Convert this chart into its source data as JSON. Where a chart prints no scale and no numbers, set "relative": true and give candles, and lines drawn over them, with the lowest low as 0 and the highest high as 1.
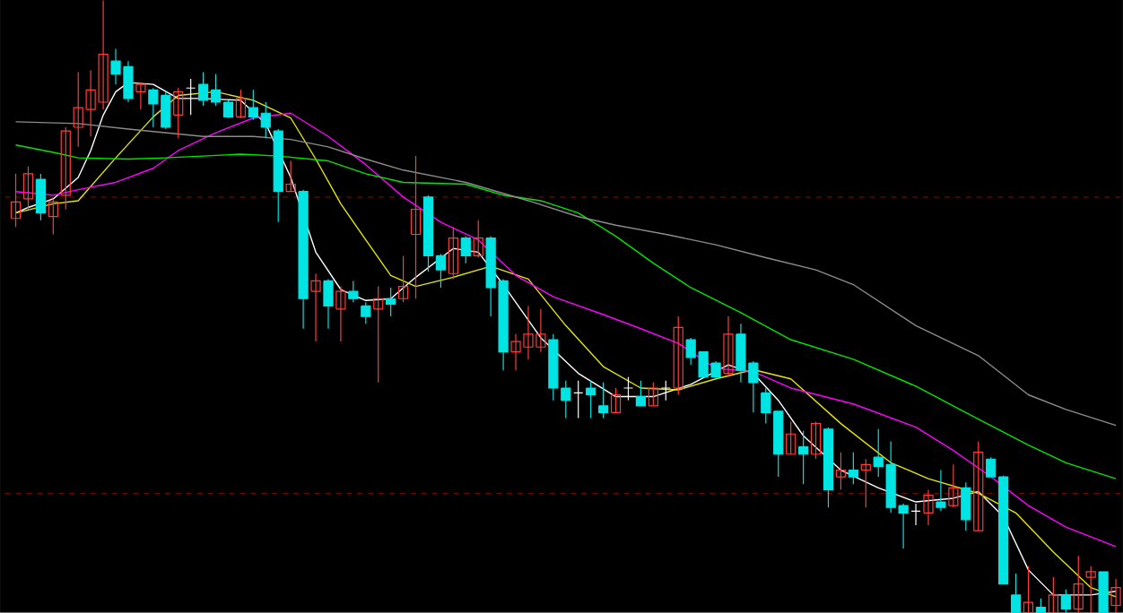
{
  "chart_data": {
    "type": "candlestick",
    "relative": true,
    "tick_labels": false,
    "categories": [
      null,
      null,
      null,
      null,
      null,
      null,
      null,
      null,
      null,
      null,
      null,
      null,
      null,
      null,
      null,
      null,
      null,
      null,
      null,
      null,
      null,
      null,
      null,
      null,
      null,
      null,
      null,
      null,
      null,
      null,
      null,
      null,
      null,
      null,
      null,
      null,
      null,
      null,
      null,
      null,
      null,
      null,
      null,
      null,
      null,
      null,
      null,
      null,
      null,
      null,
      null,
      null,
      null,
      null,
      null,
      null,
      null,
      null,
      null,
      null,
      null,
      null,
      null,
      null,
      null,
      null,
      null,
      null,
      null,
      null,
      null,
      null,
      null,
      null,
      null,
      null,
      null,
      null,
      null,
      null,
      null,
      null,
      null,
      null,
      null,
      null,
      null,
      null,
      null
    ],
    "ohlc": [
      [
        0.644,
        0.717,
        0.63,
        0.671
      ],
      [
        0.676,
        0.729,
        0.659,
        0.717
      ],
      [
        0.708,
        0.717,
        0.641,
        0.653
      ],
      [
        0.647,
        0.676,
        0.618,
        0.671
      ],
      [
        0.682,
        0.793,
        0.659,
        0.787
      ],
      [
        0.793,
        0.883,
        0.761,
        0.825
      ],
      [
        0.822,
        0.886,
        0.778,
        0.854
      ],
      [
        0.834,
        1,
        0.822,
        0.912
      ],
      [
        0.901,
        0.921,
        0.863,
        0.88
      ],
      [
        0.892,
        0.901,
        0.834,
        0.84
      ],
      [
        0.851,
        0.866,
        0.822,
        0.863
      ],
      [
        0.854,
        0.857,
        0.793,
        0.831
      ],
      [
        0.845,
        0.851,
        0.79,
        0.793
      ],
      [
        0.813,
        0.857,
        0.775,
        0.851
      ],
      [
        0.857,
        0.872,
        0.813,
        0.857
      ],
      [
        0.863,
        0.883,
        0.828,
        0.837
      ],
      [
        0.854,
        0.88,
        0.828,
        0.834
      ],
      [
        0.834,
        0.837,
        0.808,
        0.81
      ],
      [
        0.81,
        0.854,
        0.808,
        0.84
      ],
      [
        0.825,
        0.854,
        0.805,
        0.81
      ],
      [
        0.816,
        0.834,
        0.775,
        0.793
      ],
      [
        0.787,
        0.79,
        0.638,
        0.688
      ],
      [
        0.688,
        0.738,
        0.688,
        0.7
      ],
      [
        0.688,
        0.691,
        0.464,
        0.513
      ],
      [
        0.525,
        0.554,
        0.443,
        0.542
      ],
      [
        0.542,
        0.545,
        0.464,
        0.501
      ],
      [
        0.496,
        0.533,
        0.443,
        0.525
      ],
      [
        0.525,
        0.542,
        0.507,
        0.513
      ],
      [
        0.501,
        0.507,
        0.472,
        0.484
      ],
      [
        0.496,
        0.533,
        0.376,
        0.513
      ],
      [
        0.513,
        0.531,
        0.484,
        0.504
      ],
      [
        0.513,
        0.583,
        0.507,
        0.533
      ],
      [
        0.618,
        0.746,
        0.513,
        0.659
      ],
      [
        0.679,
        0.682,
        0.557,
        0.583
      ],
      [
        0.583,
        0.586,
        0.531,
        0.56
      ],
      [
        0.554,
        0.63,
        0.545,
        0.612
      ],
      [
        0.612,
        0.615,
        0.571,
        0.583
      ],
      [
        0.583,
        0.641,
        0.58,
        0.612
      ],
      [
        0.612,
        0.615,
        0.484,
        0.531
      ],
      [
        0.542,
        0.545,
        0.396,
        0.426
      ],
      [
        0.426,
        0.455,
        0.396,
        0.443
      ],
      [
        0.434,
        0.501,
        0.414,
        0.455
      ],
      [
        0.434,
        0.496,
        0.426,
        0.455
      ],
      [
        0.446,
        0.455,
        0.347,
        0.367
      ],
      [
        0.367,
        0.379,
        0.318,
        0.347
      ],
      [
        0.359,
        0.379,
        0.318,
        0.359
      ],
      [
        0.367,
        0.379,
        0.318,
        0.356
      ],
      [
        0.338,
        0.376,
        0.318,
        0.327
      ],
      [
        0.327,
        0.367,
        0.327,
        0.356
      ],
      [
        0.367,
        0.385,
        0.347,
        0.367
      ],
      [
        0.353,
        0.379,
        0.338,
        0.338
      ],
      [
        0.338,
        0.376,
        0.338,
        0.367
      ],
      [
        0.367,
        0.379,
        0.347,
        0.367
      ],
      [
        0.367,
        0.484,
        0.356,
        0.466
      ],
      [
        0.446,
        0.449,
        0.405,
        0.417
      ],
      [
        0.426,
        0.426,
        0.385,
        0.385
      ],
      [
        0.408,
        0.411,
        0.382,
        0.385
      ],
      [
        0.391,
        0.484,
        0.385,
        0.455
      ],
      [
        0.455,
        0.472,
        0.376,
        0.396
      ],
      [
        0.408,
        0.411,
        0.327,
        0.376
      ],
      [
        0.359,
        0.367,
        0.309,
        0.327
      ],
      [
        0.329,
        0.329,
        0.222,
        0.259
      ],
      [
        0.259,
        0.312,
        0.259,
        0.292
      ],
      [
        0.271,
        0.297,
        0.21,
        0.259
      ],
      [
        0.259,
        0.312,
        0.251,
        0.309
      ],
      [
        0.3,
        0.303,
        0.172,
        0.201
      ],
      [
        0.222,
        0.262,
        0.201,
        0.233
      ],
      [
        0.233,
        0.262,
        0.21,
        0.222
      ],
      [
        0.233,
        0.251,
        0.172,
        0.242
      ],
      [
        0.254,
        0.3,
        0.222,
        0.239
      ],
      [
        0.242,
        0.28,
        0.163,
        0.172
      ],
      [
        0.175,
        0.178,
        0.105,
        0.163
      ],
      [
        0.166,
        0.178,
        0.143,
        0.166
      ],
      [
        0.163,
        0.201,
        0.143,
        0.192
      ],
      [
        0.181,
        0.233,
        0.166,
        0.172
      ],
      [
        0.175,
        0.242,
        0.172,
        0.204
      ],
      [
        0.204,
        0.213,
        0.134,
        0.152
      ],
      [
        0.134,
        0.28,
        0.134,
        0.262
      ],
      [
        0.251,
        0.254,
        0.222,
        0.222
      ],
      [
        0.222,
        0.224,
        0.047,
        0.047
      ],
      [
        0.029,
        0.064,
        0,
        0
      ],
      [
        0,
        0.076,
        0,
        0.017
      ],
      [
        0.009,
        0.023,
        0,
        0
      ],
      [
        0,
        0.058,
        0,
        0.029
      ],
      [
        0.029,
        0.038,
        0,
        0.006
      ],
      [
        0.006,
        0.093,
        0,
        0.047
      ],
      [
        0.058,
        0.076,
        0,
        0.067
      ],
      [
        0.067,
        0.067,
        0,
        0
      ],
      [
        0.012,
        0.055,
        0,
        0.041
      ]
    ],
    "colors": [
      "#ff3c3c",
      "#ff3c3c",
      "#00e4e4",
      "#ff3c3c",
      "#ff3c3c",
      "#ff3c3c",
      "#ff3c3c",
      "#ff3c3c",
      "#00e4e4",
      "#00e4e4",
      "#ff3c3c",
      "#00e4e4",
      "#00e4e4",
      "#ff3c3c",
      "#ffffff",
      "#00e4e4",
      "#00e4e4",
      "#00e4e4",
      "#ff3c3c",
      "#00e4e4",
      "#00e4e4",
      "#00e4e4",
      "#ff3c3c",
      "#00e4e4",
      "#ff3c3c",
      "#00e4e4",
      "#ff3c3c",
      "#00e4e4",
      "#00e4e4",
      "#ff3c3c",
      "#00e4e4",
      "#ff3c3c",
      "#ff3c3c",
      "#00e4e4",
      "#00e4e4",
      "#ff3c3c",
      "#00e4e4",
      "#ff3c3c",
      "#00e4e4",
      "#00e4e4",
      "#ff3c3c",
      "#ff3c3c",
      "#ff3c3c",
      "#00e4e4",
      "#00e4e4",
      "#ffffff",
      "#00e4e4",
      "#00e4e4",
      "#ff3c3c",
      "#ffffff",
      "#00e4e4",
      "#ff3c3c",
      "#ffffff",
      "#ff3c3c",
      "#00e4e4",
      "#00e4e4",
      "#00e4e4",
      "#ff3c3c",
      "#00e4e4",
      "#00e4e4",
      "#00e4e4",
      "#00e4e4",
      "#ff3c3c",
      "#00e4e4",
      "#ff3c3c",
      "#00e4e4",
      "#ff3c3c",
      "#00e4e4",
      "#ff3c3c",
      "#00e4e4",
      "#00e4e4",
      "#00e4e4",
      "#ffffff",
      "#ff3c3c",
      "#00e4e4",
      "#ff3c3c",
      "#00e4e4",
      "#ff3c3c",
      "#00e4e4",
      "#00e4e4",
      "#00e4e4",
      "#ff3c3c",
      "#00e4e4",
      "#ff3c3c",
      "#00e4e4",
      "#ff3c3c",
      "#ff3c3c",
      "#00e4e4",
      "#ff3c3c"
    ],
    "series": [
      {
        "type": "line",
        "color": "#ffffff",
        "values": [
          0.653,
          0.662,
          null,
          0.676,
          null,
          0.711,
          0.755,
          0.813,
          0.851,
          0.866,
          null,
          0.863,
          null,
          0.84,
          null,
          0.84,
          null,
          null,
          0.837,
          null,
          0.799,
          null,
          0.711,
          null,
          0.589,
          null,
          0.528,
          null,
          0.51,
          null,
          0.513,
          null,
          0.548,
          null,
          null,
          0.595,
          null,
          0.589,
          null,
          0.536,
          null,
          null,
          0.449,
          null,
          null,
          0.391,
          null,
          null,
          0.353,
          null,
          null,
          0.353,
          null,
          null,
          0.373,
          null,
          null,
          0.405,
          null,
          0.391,
          null,
          0.347,
          null,
          0.289,
          null,
          null,
          0.233,
          null,
          null,
          0.204,
          null,
          null,
          0.181,
          null,
          null,
          0.187,
          null,
          0.198,
          null,
          0.157,
          null,
          0.07,
          null,
          0.029,
          null,
          null,
          0.029,
          null,
          0.035
        ]
      },
      {
        "type": "line",
        "color": "#e6e600",
        "values": [
          0.653,
          null,
          null,
          0.668,
          null,
          0.673,
          null,
          null,
          0.743,
          null,
          null,
          0.81,
          null,
          0.845,
          null,
          null,
          0.851,
          null,
          null,
          0.837,
          null,
          null,
          0.808,
          null,
          0.741,
          null,
          0.668,
          null,
          0.609,
          null,
          0.551,
          null,
          0.533,
          null,
          null,
          0.548,
          null,
          null,
          0.566,
          null,
          null,
          0.545,
          null,
          null,
          0.469,
          null,
          null,
          0.402,
          null,
          null,
          0.367,
          null,
          null,
          0.364,
          null,
          null,
          0.382,
          null,
          null,
          0.397,
          null,
          null,
          0.382,
          null,
          null,
          null,
          0.309,
          null,
          null,
          null,
          0.245,
          null,
          null,
          0.219,
          null,
          null,
          null,
          0.195,
          null,
          null,
          0.163,
          null,
          null,
          0.099,
          null,
          null,
          0.041,
          null,
          0.026
        ]
      },
      {
        "type": "line",
        "color": "#ff00ff",
        "values": [
          0.688,
          null,
          null,
          0.682,
          null,
          0.691,
          null,
          null,
          0.703,
          null,
          null,
          0.726,
          null,
          0.755,
          null,
          null,
          0.784,
          null,
          null,
          0.808,
          null,
          null,
          0.816,
          null,
          null,
          0.778,
          null,
          null,
          0.732,
          null,
          null,
          0.679,
          null,
          null,
          0.638,
          null,
          null,
          0.609,
          null,
          null,
          0.551,
          null,
          null,
          0.516,
          null,
          null,
          null,
          0.487,
          null,
          null,
          0.464,
          null,
          null,
          0.44,
          null,
          null,
          0.399,
          null,
          null,
          0.394,
          null,
          null,
          0.367,
          null,
          null,
          null,
          null,
          0.341,
          null,
          null,
          null,
          null,
          0.303,
          null,
          null,
          0.265,
          null,
          null,
          0.222,
          null,
          null,
          0.175,
          null,
          null,
          0.14,
          null,
          null,
          null,
          0.108
        ]
      },
      {
        "type": "line",
        "color": "#00e600",
        "values": [
          0.764,
          null,
          null,
          0.752,
          null,
          0.743,
          null,
          null,
          null,
          0.741,
          null,
          null,
          0.743,
          null,
          null,
          0.746,
          null,
          null,
          0.749,
          null,
          null,
          0.746,
          null,
          null,
          null,
          0.738,
          null,
          null,
          0.717,
          null,
          null,
          0.703,
          null,
          null,
          null,
          null,
          0.7,
          null,
          null,
          0.682,
          null,
          null,
          0.673,
          null,
          null,
          0.653,
          null,
          null,
          0.615,
          null,
          null,
          0.571,
          null,
          null,
          0.531,
          null,
          null,
          null,
          0.49,
          null,
          null,
          null,
          0.446,
          null,
          null,
          null,
          null,
          0.414,
          null,
          null,
          null,
          null,
          0.37,
          null,
          null,
          null,
          0.327,
          null,
          null,
          null,
          null,
          0.274,
          null,
          null,
          0.245,
          null,
          null,
          null,
          0.219
        ]
      },
      {
        "type": "line",
        "color": "#8c8c8c",
        "values": [
          0.802,
          null,
          null,
          null,
          null,
          0.799,
          null,
          null,
          null,
          0.79,
          null,
          null,
          0.784,
          null,
          null,
          0.778,
          null,
          null,
          null,
          0.778,
          null,
          null,
          0.773,
          null,
          null,
          0.761,
          null,
          null,
          0.741,
          null,
          null,
          0.723,
          null,
          null,
          null,
          null,
          0.703,
          null,
          null,
          null,
          null,
          0.673,
          null,
          null,
          null,
          0.647,
          null,
          null,
          0.633,
          null,
          null,
          null,
          0.618,
          null,
          null,
          null,
          0.601,
          null,
          null,
          null,
          0.58,
          null,
          null,
          null,
          0.56,
          null,
          null,
          0.536,
          null,
          null,
          null,
          null,
          0.469,
          null,
          null,
          null,
          null,
          0.42,
          null,
          null,
          null,
          0.356,
          null,
          null,
          0.332,
          null,
          null,
          null,
          0.306
        ]
      }
    ],
    "ref_lines": [
      {
        "axis": "y",
        "value": 0.679,
        "color": "#800000",
        "line_style": "dashed"
      },
      {
        "axis": "y",
        "value": 0.195,
        "color": "#800000",
        "line_style": "dashed"
      }
    ]
  }
}
